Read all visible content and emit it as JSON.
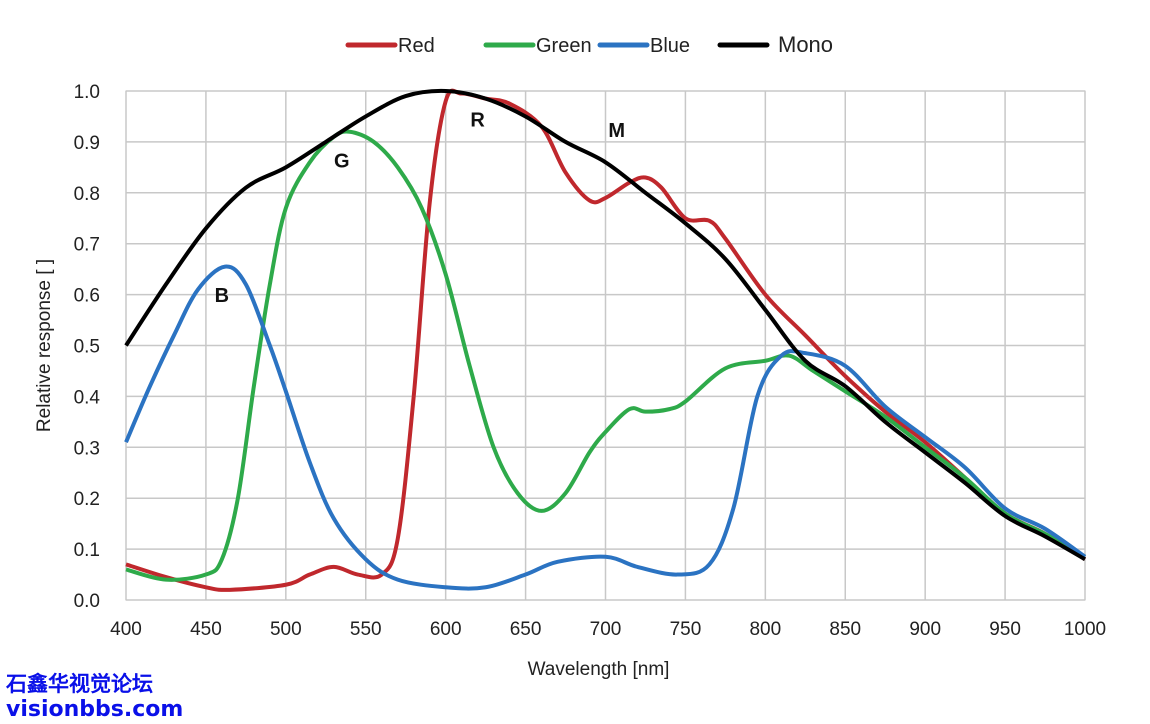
{
  "chart_data": {
    "type": "line",
    "title": "",
    "xlabel": "Wavelength [nm]",
    "ylabel": "Relative response [ ]",
    "xlim": [
      400,
      1000
    ],
    "ylim": [
      0,
      1.0
    ],
    "xticks": [
      400,
      450,
      500,
      550,
      600,
      650,
      700,
      750,
      800,
      850,
      900,
      950,
      1000
    ],
    "yticks": [
      "0.0",
      "0.1",
      "0.2",
      "0.3",
      "0.4",
      "0.5",
      "0.6",
      "0.7",
      "0.8",
      "0.9",
      "1.0"
    ],
    "grid": true,
    "legend_position": "top",
    "series": [
      {
        "name": "Red",
        "color": "#c0282d",
        "x": [
          400,
          425,
          450,
          465,
          500,
          515,
          530,
          545,
          560,
          570,
          580,
          590,
          600,
          610,
          625,
          640,
          660,
          675,
          690,
          700,
          715,
          725,
          735,
          750,
          765,
          775,
          800,
          825,
          850,
          875,
          900,
          925,
          950,
          975,
          1000
        ],
        "y": [
          0.07,
          0.045,
          0.025,
          0.02,
          0.03,
          0.05,
          0.065,
          0.05,
          0.05,
          0.12,
          0.4,
          0.78,
          0.98,
          0.995,
          0.985,
          0.975,
          0.93,
          0.84,
          0.785,
          0.79,
          0.82,
          0.83,
          0.81,
          0.75,
          0.745,
          0.71,
          0.6,
          0.52,
          0.44,
          0.37,
          0.31,
          0.24,
          0.17,
          0.13,
          0.08
        ]
      },
      {
        "name": "Green",
        "color": "#2eaa4a",
        "x": [
          400,
          425,
          450,
          460,
          470,
          480,
          490,
          500,
          515,
          530,
          540,
          555,
          570,
          585,
          600,
          615,
          630,
          645,
          660,
          675,
          690,
          700,
          715,
          725,
          740,
          750,
          775,
          800,
          815,
          830,
          850,
          875,
          900,
          925,
          950,
          975,
          1000
        ],
        "y": [
          0.06,
          0.04,
          0.05,
          0.08,
          0.2,
          0.42,
          0.62,
          0.77,
          0.86,
          0.91,
          0.92,
          0.9,
          0.85,
          0.77,
          0.64,
          0.46,
          0.3,
          0.21,
          0.175,
          0.21,
          0.29,
          0.33,
          0.375,
          0.37,
          0.375,
          0.39,
          0.455,
          0.47,
          0.48,
          0.45,
          0.41,
          0.36,
          0.3,
          0.24,
          0.17,
          0.13,
          0.085
        ]
      },
      {
        "name": "Blue",
        "color": "#2b73c2",
        "x": [
          400,
          415,
          430,
          445,
          462,
          475,
          490,
          500,
          515,
          530,
          550,
          570,
          600,
          625,
          650,
          670,
          700,
          720,
          745,
          765,
          780,
          795,
          810,
          825,
          850,
          875,
          900,
          925,
          950,
          975,
          1000
        ],
        "y": [
          0.31,
          0.42,
          0.52,
          0.61,
          0.655,
          0.62,
          0.5,
          0.41,
          0.27,
          0.16,
          0.08,
          0.04,
          0.025,
          0.025,
          0.05,
          0.075,
          0.085,
          0.065,
          0.05,
          0.07,
          0.18,
          0.4,
          0.48,
          0.485,
          0.46,
          0.38,
          0.32,
          0.26,
          0.18,
          0.14,
          0.085
        ]
      },
      {
        "name": "Mono",
        "color": "#000000",
        "x": [
          400,
          425,
          450,
          475,
          500,
          525,
          550,
          575,
          600,
          625,
          650,
          675,
          700,
          725,
          750,
          775,
          800,
          825,
          850,
          875,
          900,
          925,
          950,
          975,
          1000
        ],
        "y": [
          0.5,
          0.62,
          0.73,
          0.81,
          0.85,
          0.9,
          0.95,
          0.99,
          1.0,
          0.985,
          0.95,
          0.9,
          0.86,
          0.8,
          0.74,
          0.67,
          0.57,
          0.47,
          0.42,
          0.35,
          0.29,
          0.23,
          0.165,
          0.125,
          0.08
        ]
      }
    ],
    "annotations": [
      {
        "text": "R",
        "x": 620,
        "y": 0.93
      },
      {
        "text": "G",
        "x": 535,
        "y": 0.85
      },
      {
        "text": "B",
        "x": 460,
        "y": 0.585
      },
      {
        "text": "M",
        "x": 707,
        "y": 0.91
      }
    ]
  },
  "watermark": {
    "line1": "石鑫华视觉论坛",
    "line2": "visionbbs.com"
  }
}
